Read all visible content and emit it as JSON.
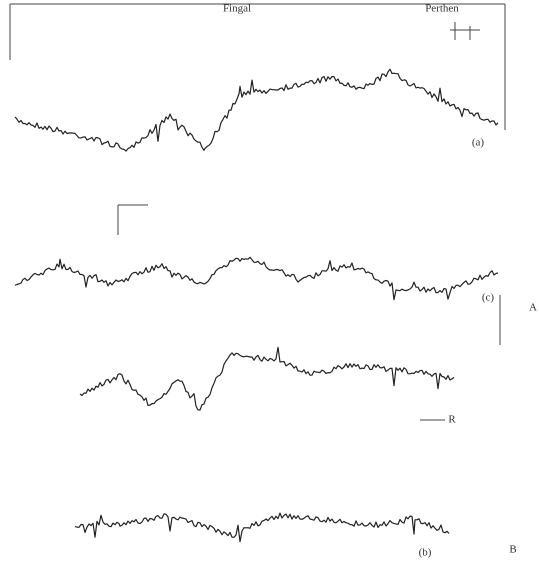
{
  "labels": {
    "top_center": "Fingal",
    "top_right": "Perthen",
    "trace_a": "(a)",
    "trace_c": "(c)",
    "panel_a": "A",
    "trace_r": "R",
    "trace_b": "(b)",
    "panel_b": "B"
  }
}
